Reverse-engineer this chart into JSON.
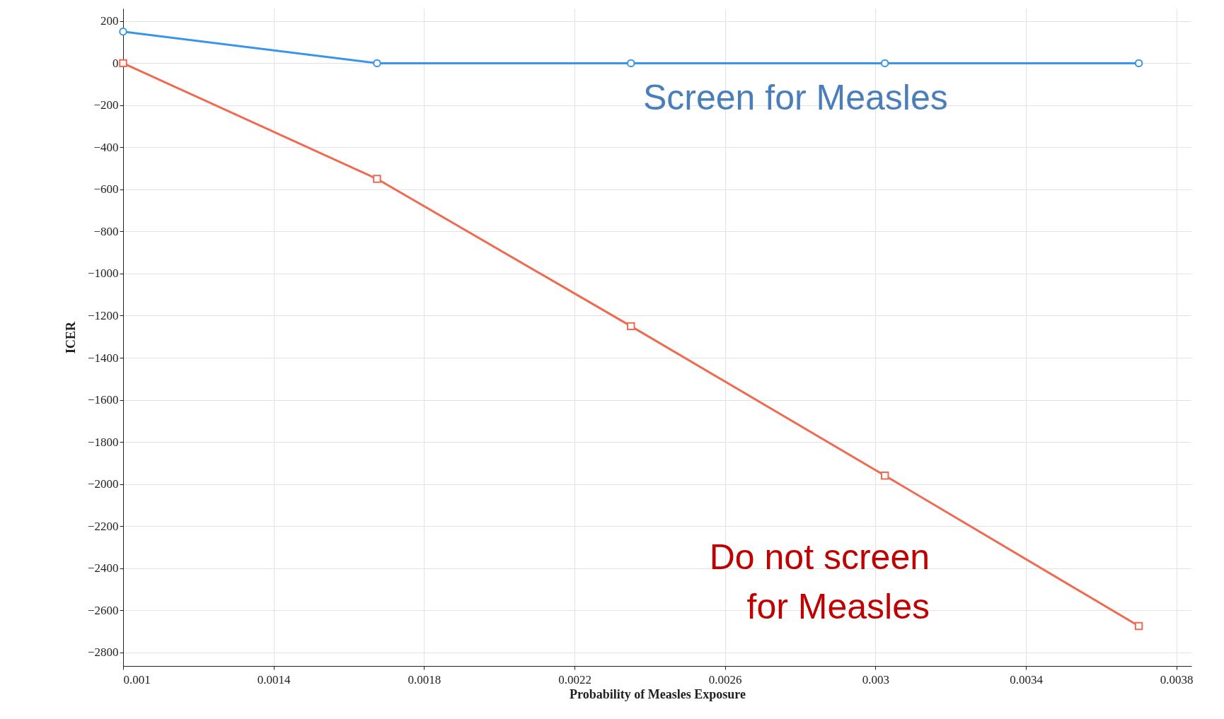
{
  "chart_data": {
    "type": "line",
    "xlabel": "Probability of Measles Exposure",
    "ylabel": "ICER",
    "x": [
      0.001,
      0.001675,
      0.00235,
      0.003025,
      0.0037
    ],
    "series": [
      {
        "name": "Screen for Measles",
        "color": "#3a95e8",
        "values": [
          150,
          0,
          0,
          0,
          0
        ],
        "marker": "circle"
      },
      {
        "name": "Do not screen\nfor Measles",
        "color": "#ef6a50",
        "values": [
          0,
          -550,
          -1250,
          -1960,
          -2675
        ],
        "marker": "square"
      }
    ],
    "xlim": [
      0.001,
      0.00384
    ],
    "xticks": [
      0.001,
      0.0014,
      0.0018,
      0.0022,
      0.0026,
      0.003,
      0.0034,
      0.0038
    ],
    "ylim": [
      -2865,
      260
    ],
    "yticks": [
      200,
      0,
      -200,
      -400,
      -600,
      -800,
      -1000,
      -1200,
      -1400,
      -1600,
      -1800,
      -2000,
      -2200,
      -2400,
      -2600,
      -2800
    ],
    "grid": true,
    "line_style": "solid"
  }
}
